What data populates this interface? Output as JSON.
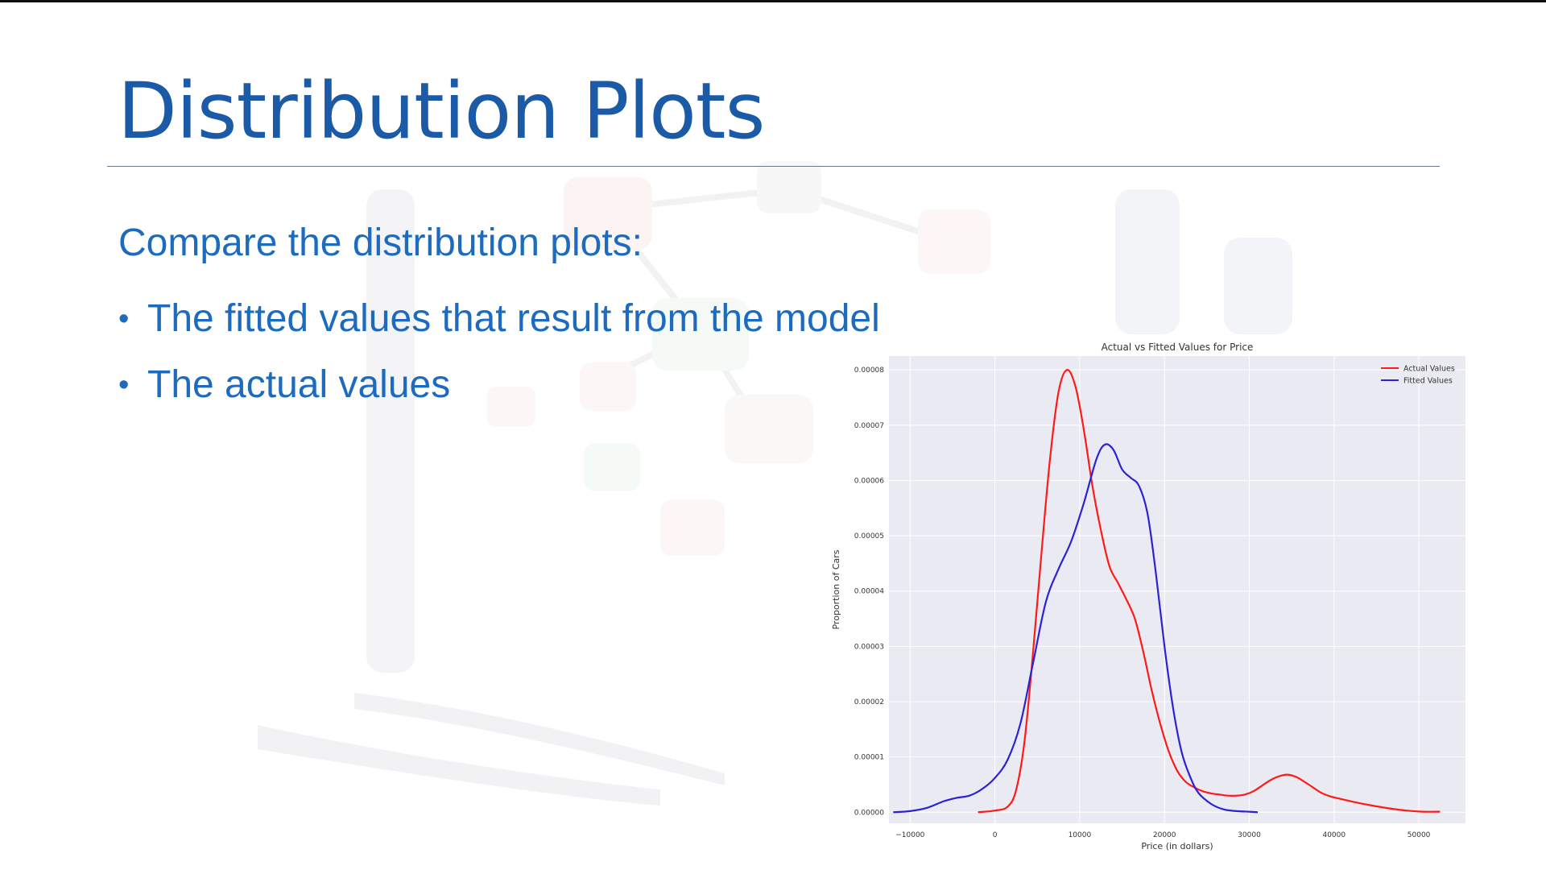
{
  "slide": {
    "title": "Distribution Plots",
    "intro": "Compare the distribution plots:",
    "bullets": [
      "The fitted values that result from the model",
      "The actual values"
    ]
  },
  "chart_data": {
    "type": "line",
    "title": "Actual vs Fitted Values for Price",
    "xlabel": "Price (in dollars)",
    "ylabel": "Proportion of Cars",
    "xlim": [
      -12500,
      55500
    ],
    "ylim": [
      -2e-06,
      8.25e-05
    ],
    "x_ticks": [
      -10000,
      0,
      10000,
      20000,
      30000,
      40000,
      50000
    ],
    "x_tick_labels": [
      "−10000",
      "0",
      "10000",
      "20000",
      "30000",
      "40000",
      "50000"
    ],
    "y_ticks": [
      0,
      1e-05,
      2e-05,
      3e-05,
      4e-05,
      5e-05,
      6e-05,
      7e-05,
      8e-05
    ],
    "y_tick_labels": [
      "0.00000",
      "0.00001",
      "0.00002",
      "0.00003",
      "0.00004",
      "0.00005",
      "0.00006",
      "0.00007",
      "0.00008"
    ],
    "grid": true,
    "legend_position": "top-right",
    "background": "#eaeaf2",
    "series": [
      {
        "name": "Actual Values",
        "color": "#ff1a1a",
        "x": [
          -2000,
          0,
          1500,
          2500,
          3500,
          4500,
          5500,
          6500,
          7500,
          8500,
          9500,
          10500,
          11500,
          12500,
          13500,
          14500,
          15500,
          16500,
          17500,
          18500,
          19500,
          20500,
          21500,
          22500,
          23500,
          24500,
          25500,
          26500,
          27500,
          28500,
          29500,
          30500,
          31500,
          32500,
          33500,
          34500,
          35500,
          36500,
          37500,
          38500,
          39500,
          40500,
          42500,
          44500,
          46500,
          48500,
          50500,
          52500
        ],
        "y": [
          0,
          3e-07,
          1e-06,
          4e-06,
          1.3e-05,
          2.9e-05,
          4.7e-05,
          6.4e-05,
          7.6e-05,
          8e-05,
          7.7e-05,
          6.9e-05,
          5.9e-05,
          5.1e-05,
          4.45e-05,
          4.15e-05,
          3.85e-05,
          3.5e-05,
          2.9e-05,
          2.2e-05,
          1.6e-05,
          1.1e-05,
          7.5e-06,
          5.5e-06,
          4.5e-06,
          3.8e-06,
          3.4e-06,
          3.2e-06,
          3e-06,
          3e-06,
          3.2e-06,
          3.8e-06,
          4.8e-06,
          5.8e-06,
          6.5e-06,
          6.8e-06,
          6.4e-06,
          5.5e-06,
          4.5e-06,
          3.5e-06,
          2.9e-06,
          2.5e-06,
          1.8e-06,
          1.2e-06,
          7e-07,
          3e-07,
          1e-07,
          1e-07
        ]
      },
      {
        "name": "Fitted Values",
        "color": "#2b22d6",
        "x": [
          -12000,
          -10000,
          -8000,
          -6000,
          -4500,
          -3000,
          -1500,
          0,
          1500,
          3000,
          4500,
          6000,
          7500,
          9000,
          10500,
          12000,
          13000,
          14000,
          15000,
          16000,
          17000,
          18000,
          19000,
          20000,
          21000,
          22000,
          23000,
          24000,
          25500,
          27000,
          28500,
          30000,
          31000
        ],
        "y": [
          0,
          2e-07,
          8e-07,
          2e-06,
          2.6e-06,
          3e-06,
          4.2e-06,
          6.2e-06,
          9.5e-06,
          1.6e-05,
          2.7e-05,
          3.8e-05,
          4.4e-05,
          4.9e-05,
          5.6e-05,
          6.4e-05,
          6.65e-05,
          6.55e-05,
          6.2e-05,
          6.05e-05,
          5.9e-05,
          5.4e-05,
          4.3e-05,
          3e-05,
          1.9e-05,
          1.1e-05,
          6.5e-06,
          3.5e-06,
          1.5e-06,
          5e-07,
          2e-07,
          1e-07,
          0
        ]
      }
    ]
  }
}
